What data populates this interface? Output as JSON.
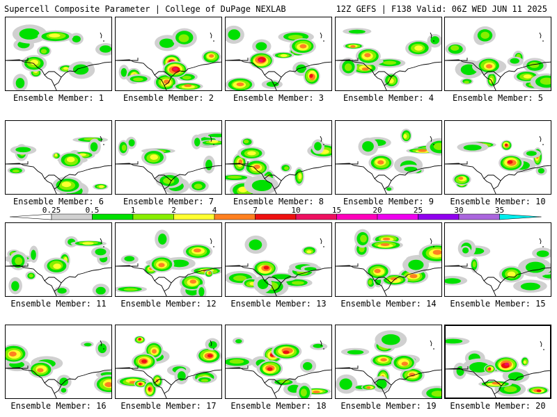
{
  "header": {
    "left": "Supercell Composite Parameter | College of DuPage NEXLAB",
    "right": "12Z GEFS | F138 Valid: 06Z WED JUN 11 2025"
  },
  "colorbar": {
    "labels": [
      "0.25",
      "0.5",
      "1",
      "2",
      "4",
      "7",
      "10",
      "15",
      "20",
      "25",
      "30",
      "35"
    ],
    "colors": [
      "#d0d0d0",
      "#00e000",
      "#88ee00",
      "#ffff30",
      "#ff8020",
      "#ee1010",
      "#ee1060",
      "#ff00bb",
      "#ee00ee",
      "#9000ee",
      "#aa66dd",
      "#00eeee"
    ]
  },
  "members": [
    {
      "label": "Ensemble Member: 1",
      "max": 2
    },
    {
      "label": "Ensemble Member: 2",
      "max": 10
    },
    {
      "label": "Ensemble Member: 3",
      "max": 10
    },
    {
      "label": "Ensemble Member: 4",
      "max": 4
    },
    {
      "label": "Ensemble Member: 5",
      "max": 4
    },
    {
      "label": "Ensemble Member: 6",
      "max": 2
    },
    {
      "label": "Ensemble Member: 7",
      "max": 2
    },
    {
      "label": "Ensemble Member: 8",
      "max": 4
    },
    {
      "label": "Ensemble Member: 9",
      "max": 4
    },
    {
      "label": "Ensemble Member: 10",
      "max": 7
    },
    {
      "label": "Ensemble Member: 11",
      "max": 2
    },
    {
      "label": "Ensemble Member: 12",
      "max": 4
    },
    {
      "label": "Ensemble Member: 13",
      "max": 7
    },
    {
      "label": "Ensemble Member: 14",
      "max": 4
    },
    {
      "label": "Ensemble Member: 15",
      "max": 2
    },
    {
      "label": "Ensemble Member: 16",
      "max": 4
    },
    {
      "label": "Ensemble Member: 17",
      "max": 7
    },
    {
      "label": "Ensemble Member: 18",
      "max": 7
    },
    {
      "label": "Ensemble Member: 19",
      "max": 4
    },
    {
      "label": "Ensemble Member: 20",
      "max": 10
    }
  ],
  "highlighted_member": 20
}
